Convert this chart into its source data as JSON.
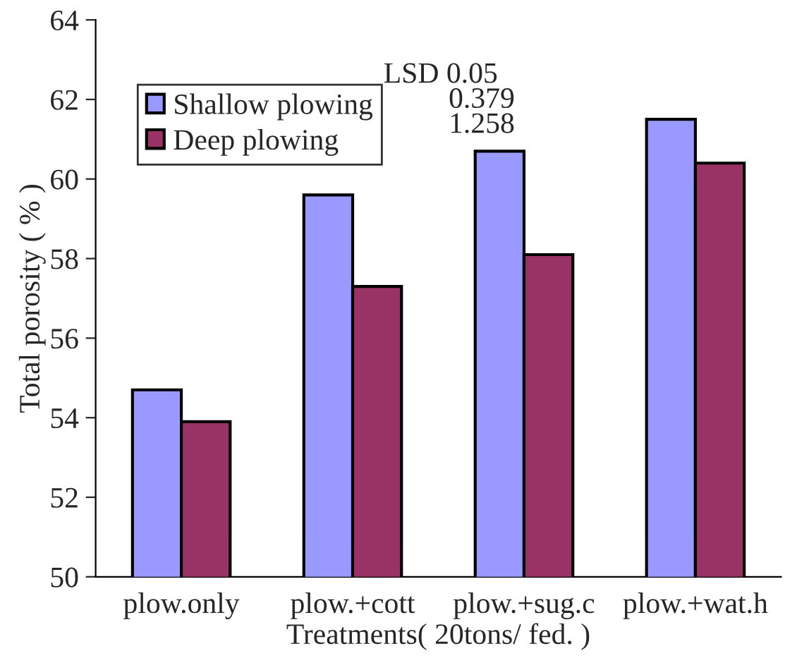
{
  "chart_data": {
    "type": "bar",
    "xlabel": "Treatments( 20tons/ fed. )",
    "ylabel": "Total porosity ( % )",
    "categories": [
      "plow.only",
      "plow.+cott",
      "plow.+sug.c",
      "plow.+wat.h"
    ],
    "series": [
      {
        "name": "Shallow plowing",
        "color": "#9999ff",
        "values": [
          54.7,
          59.6,
          60.7,
          61.5
        ]
      },
      {
        "name": "Deep plowing",
        "color": "#993366",
        "values": [
          53.9,
          57.3,
          58.1,
          60.4
        ]
      }
    ],
    "ylim": [
      50,
      64
    ],
    "yticks": [
      50,
      52,
      54,
      56,
      58,
      60,
      62,
      64
    ],
    "grid": false,
    "legend": "top left",
    "annotations": [
      "LSD 0.05",
      "0.379",
      "1.258"
    ]
  }
}
